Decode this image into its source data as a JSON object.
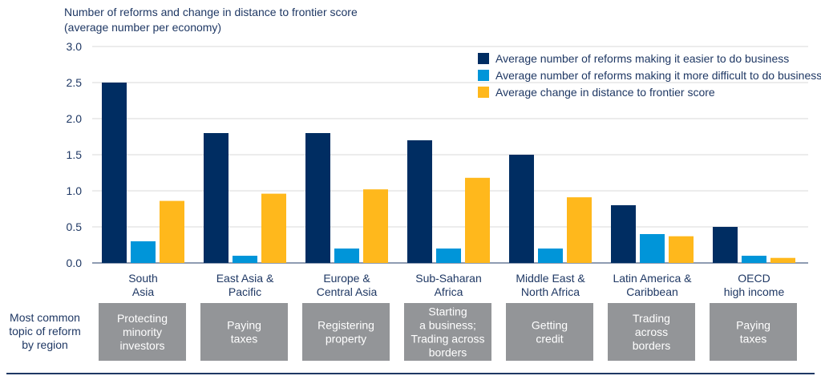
{
  "chart_data": {
    "type": "bar",
    "title": "Number of reforms and change in distance to frontier score",
    "subtitle": "(average number per economy)",
    "ylim": [
      0,
      3.0
    ],
    "yticks": [
      "0.0",
      "0.5",
      "1.0",
      "1.5",
      "2.0",
      "2.5",
      "3.0"
    ],
    "grid": true,
    "legend_position": "top-right",
    "categories": [
      [
        "South",
        "Asia"
      ],
      [
        "East Asia &",
        "Pacific"
      ],
      [
        "Europe &",
        "Central Asia"
      ],
      [
        "Sub-Saharan",
        "Africa"
      ],
      [
        "Middle East &",
        "North Africa"
      ],
      [
        "Latin America &",
        "Caribbean"
      ],
      [
        "OECD",
        "high income"
      ]
    ],
    "series": [
      {
        "name": "Average number of reforms making it easier to do business",
        "color": "#002d62",
        "values": [
          2.5,
          1.8,
          1.8,
          1.7,
          1.5,
          0.8,
          0.5
        ]
      },
      {
        "name": "Average number of reforms making it more difficult to do business",
        "color": "#0095d9",
        "values": [
          0.3,
          0.1,
          0.2,
          0.2,
          0.2,
          0.4,
          0.1
        ]
      },
      {
        "name": "Average change in distance to frontier score",
        "color": "#ffb81c",
        "values": [
          0.86,
          0.96,
          1.02,
          1.18,
          0.91,
          0.37,
          0.07
        ]
      }
    ]
  },
  "topic_row": {
    "label": [
      "Most common",
      "topic of reform",
      "by region"
    ],
    "color": "#939598",
    "topics": [
      [
        "Protecting",
        "minority",
        "investors"
      ],
      [
        "Paying",
        "taxes"
      ],
      [
        "Registering",
        "property"
      ],
      [
        "Starting",
        "a business;",
        "Trading across",
        "borders"
      ],
      [
        "Getting",
        "credit"
      ],
      [
        "Trading",
        "across",
        "borders"
      ],
      [
        "Paying",
        "taxes"
      ]
    ]
  }
}
